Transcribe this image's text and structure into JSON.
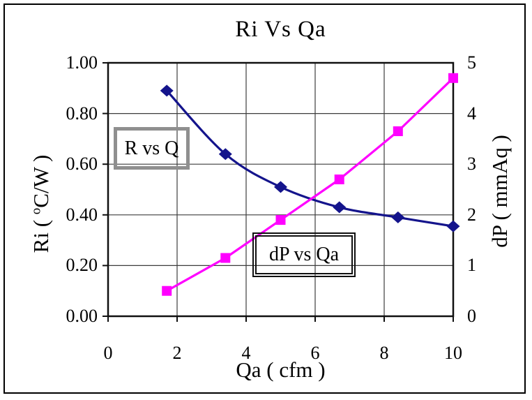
{
  "chart_data": {
    "type": "line",
    "title": "Ri Vs Qa",
    "xlabel": "Qa ( cfm )",
    "grid": true,
    "legend_position": "inline-boxed-labels",
    "x_axis": {
      "ticks": [
        "0",
        "2",
        "4",
        "6",
        "8",
        "10"
      ],
      "lim": [
        0,
        10
      ]
    },
    "left_axis": {
      "label": "Ri ( °C/W )",
      "label_parts": [
        "Ri ( ",
        "o",
        "C/W )"
      ],
      "ticks": [
        "1.00",
        "0.80",
        "0.60",
        "0.40",
        "0.20",
        "0.00"
      ],
      "lim": [
        0,
        1
      ]
    },
    "right_axis": {
      "label": "dP ( mmAq )",
      "ticks": [
        "5",
        "4",
        "3",
        "2",
        "1",
        "0"
      ],
      "lim": [
        0,
        5
      ]
    },
    "series": [
      {
        "name": "R vs Q",
        "axis": "left",
        "marker": "diamond",
        "color": "#14148C",
        "smooth": true,
        "x": [
          1.7,
          3.4,
          5.0,
          6.7,
          8.4,
          10.0
        ],
        "y": [
          0.89,
          0.64,
          0.51,
          0.43,
          0.39,
          0.355
        ]
      },
      {
        "name": "dP vs Qa",
        "axis": "right",
        "marker": "square",
        "color": "#FF00FF",
        "smooth": false,
        "x": [
          1.7,
          3.4,
          5.0,
          6.7,
          8.4,
          10.0
        ],
        "y": [
          0.5,
          1.15,
          1.9,
          2.7,
          3.65,
          4.7
        ]
      }
    ],
    "colors": {
      "grid": "#3c3c3c",
      "axis": "#101010",
      "label_box_gray": "#8f8f8f"
    }
  }
}
